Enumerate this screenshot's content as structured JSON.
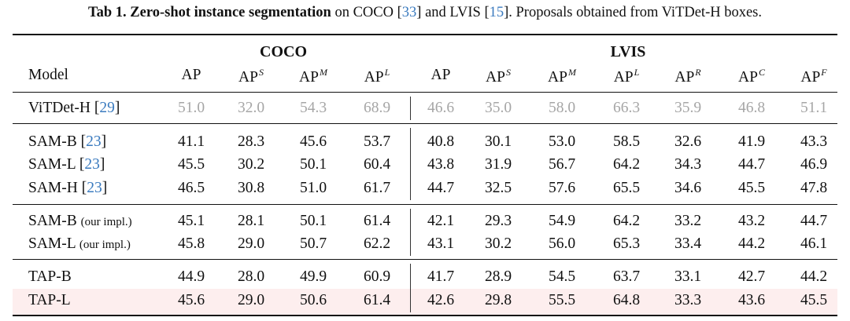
{
  "caption": {
    "label": "Tab 1.",
    "title": "Zero-shot instance segmentation",
    "text1": " on COCO [",
    "ref1": "33",
    "text2": "] and LVIS [",
    "ref2": "15",
    "text3": "]. Proposals obtained from ViTDet-H boxes."
  },
  "groups": {
    "coco": "COCO",
    "lvis": "LVIS"
  },
  "header": {
    "model": "Model",
    "cols": [
      {
        "base": "AP",
        "sup": ""
      },
      {
        "base": "AP",
        "sup": "S"
      },
      {
        "base": "AP",
        "sup": "M"
      },
      {
        "base": "AP",
        "sup": "L"
      },
      {
        "base": "AP",
        "sup": ""
      },
      {
        "base": "AP",
        "sup": "S"
      },
      {
        "base": "AP",
        "sup": "M"
      },
      {
        "base": "AP",
        "sup": "L"
      },
      {
        "base": "AP",
        "sup": "R"
      },
      {
        "base": "AP",
        "sup": "C"
      },
      {
        "base": "AP",
        "sup": "F"
      }
    ]
  },
  "rows": [
    {
      "name": "ViTDet-H",
      "ref": "29",
      "suffix": "",
      "values": [
        "51.0",
        "32.0",
        "54.3",
        "68.9",
        "46.6",
        "35.0",
        "58.0",
        "66.3",
        "35.9",
        "46.8",
        "51.1"
      ]
    },
    {
      "name": "SAM-B",
      "ref": "23",
      "suffix": "",
      "values": [
        "41.1",
        "28.3",
        "45.6",
        "53.7",
        "40.8",
        "30.1",
        "53.0",
        "58.5",
        "32.6",
        "41.9",
        "43.3"
      ]
    },
    {
      "name": "SAM-L",
      "ref": "23",
      "suffix": "",
      "values": [
        "45.5",
        "30.2",
        "50.1",
        "60.4",
        "43.8",
        "31.9",
        "56.7",
        "64.2",
        "34.3",
        "44.7",
        "46.9"
      ]
    },
    {
      "name": "SAM-H",
      "ref": "23",
      "suffix": "",
      "values": [
        "46.5",
        "30.8",
        "51.0",
        "61.7",
        "44.7",
        "32.5",
        "57.6",
        "65.5",
        "34.6",
        "45.5",
        "47.8"
      ]
    },
    {
      "name": "SAM-B",
      "ref": "",
      "suffix": "(our impl.)",
      "values": [
        "45.1",
        "28.1",
        "50.1",
        "61.4",
        "42.1",
        "29.3",
        "54.9",
        "64.2",
        "33.2",
        "43.2",
        "44.7"
      ]
    },
    {
      "name": "SAM-L",
      "ref": "",
      "suffix": "(our impl.)",
      "values": [
        "45.8",
        "29.0",
        "50.7",
        "62.2",
        "43.1",
        "30.2",
        "56.0",
        "65.3",
        "33.4",
        "44.2",
        "46.1"
      ]
    },
    {
      "name": "TAP-B",
      "ref": "",
      "suffix": "",
      "values": [
        "44.9",
        "28.0",
        "49.9",
        "60.9",
        "41.7",
        "28.9",
        "54.5",
        "63.7",
        "33.1",
        "42.7",
        "44.2"
      ]
    },
    {
      "name": "TAP-L",
      "ref": "",
      "suffix": "",
      "values": [
        "45.6",
        "29.0",
        "50.6",
        "61.4",
        "42.6",
        "29.8",
        "55.5",
        "64.8",
        "33.3",
        "43.6",
        "45.5"
      ]
    }
  ],
  "colors": {
    "ref": "#3b7bbf",
    "baseline_text": "#a6a6a6",
    "highlight_row": "#fdeeee"
  }
}
